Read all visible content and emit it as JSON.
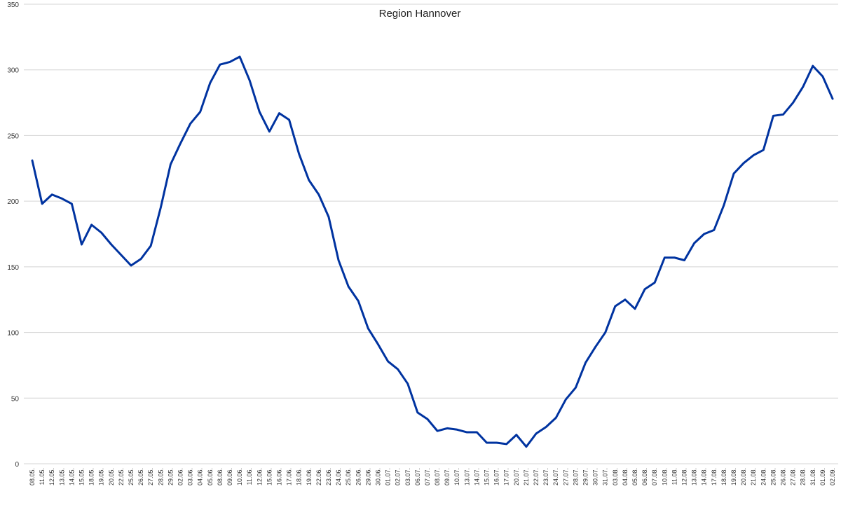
{
  "chart_data": {
    "type": "line",
    "title": "Region Hannover",
    "xlabel": "",
    "ylabel": "",
    "ylim": [
      0,
      350
    ],
    "yticks": [
      0,
      50,
      100,
      150,
      200,
      250,
      300,
      350
    ],
    "grid": true,
    "line_color": "#0033A0",
    "x": [
      "08.05.",
      "11.05.",
      "12.05.",
      "13.05.",
      "14.05.",
      "15.05.",
      "18.05.",
      "19.05.",
      "20.05.",
      "22.05.",
      "25.05.",
      "26.05.",
      "27.05.",
      "28.05.",
      "29.05.",
      "02.06.",
      "03.06.",
      "04.06.",
      "05.06.",
      "08.06.",
      "09.06.",
      "10.06.",
      "11.06.",
      "12.06.",
      "15.06.",
      "16.06.",
      "17.06.",
      "18.06.",
      "19.06.",
      "22.06.",
      "23.06.",
      "24.06.",
      "25.06.",
      "26.06.",
      "29.06.",
      "30.06.",
      "01.07.",
      "02.07.",
      "03.07.",
      "06.07.",
      "07.07.",
      "08.07.",
      "09.07.",
      "10.07.",
      "13.07.",
      "14.07.",
      "15.07.",
      "16.07.",
      "17.07.",
      "20.07.",
      "21.07.",
      "22.07.",
      "23.07.",
      "24.07.",
      "27.07.",
      "28.07.",
      "29.07.",
      "30.07.",
      "31.07.",
      "03.08.",
      "04.08.",
      "05.08.",
      "06.08.",
      "07.08.",
      "10.08.",
      "11.08.",
      "12.08.",
      "13.08.",
      "14.08.",
      "17.08.",
      "18.08.",
      "19.08.",
      "20.08.",
      "21.08.",
      "24.08.",
      "25.08.",
      "26.08.",
      "27.08.",
      "28.08.",
      "31.08.",
      "01.09.",
      "02.09."
    ],
    "series": [
      {
        "values": [
          231,
          198,
          205,
          202,
          198,
          167,
          182,
          176,
          167,
          159,
          151,
          156,
          166,
          195,
          228,
          244,
          259,
          268,
          290,
          304,
          306,
          310,
          292,
          268,
          253,
          267,
          262,
          236,
          216,
          205,
          188,
          155,
          135,
          124,
          103,
          91,
          78,
          72,
          61,
          39,
          34,
          25,
          27,
          26,
          24,
          24,
          16,
          16,
          15,
          22,
          13,
          23,
          28,
          35,
          49,
          58,
          77,
          89,
          100,
          120,
          125,
          118,
          133,
          138,
          157,
          157,
          155,
          168,
          175,
          178,
          197,
          221,
          229,
          235,
          239,
          265,
          266,
          275,
          287,
          303,
          295,
          278
        ]
      }
    ]
  }
}
